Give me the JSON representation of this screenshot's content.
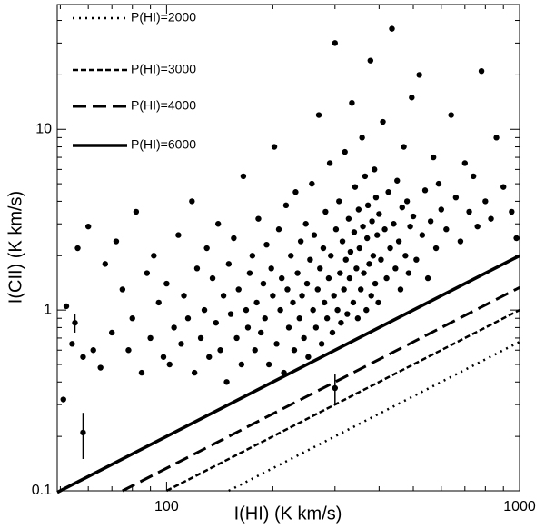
{
  "chart_data": {
    "type": "scatter",
    "log_x": true,
    "log_y": true,
    "xlabel": "I(HI) (K km/s)",
    "ylabel": "I(CII) (K km/s)",
    "xlim": [
      49,
      1000
    ],
    "ylim": [
      0.1,
      49
    ],
    "xticks": [
      100,
      1000
    ],
    "yticks": [
      0.1,
      1,
      10
    ],
    "xminor": [
      50,
      60,
      70,
      80,
      90,
      200,
      300,
      400,
      500,
      600,
      700,
      800,
      900
    ],
    "yminor": [
      0.2,
      0.3,
      0.4,
      0.5,
      0.6,
      0.7,
      0.8,
      0.9,
      2,
      3,
      4,
      5,
      6,
      7,
      8,
      9,
      20,
      30,
      40
    ],
    "color": "#000000",
    "legend": "upper left",
    "lines": [
      {
        "name": "P(HI)=2000",
        "style": "dotted",
        "x": [
          150,
          1000
        ],
        "y": [
          0.1,
          0.667
        ]
      },
      {
        "name": "P(HI)=3000",
        "style": "dashed",
        "x": [
          100,
          1000
        ],
        "y": [
          0.1,
          1.0
        ]
      },
      {
        "name": "P(HI)=4000",
        "style": "longdash",
        "x": [
          75,
          1000
        ],
        "y": [
          0.1,
          1.333
        ]
      },
      {
        "name": "P(HI)=6000",
        "style": "solid",
        "x": [
          49,
          1000
        ],
        "y": [
          0.098,
          2.0
        ]
      }
    ],
    "error_points": {
      "x": [
        55,
        58,
        300
      ],
      "y": [
        0.85,
        0.21,
        0.37
      ],
      "errors": [
        0.1,
        0.06,
        0.07
      ]
    },
    "x": [
      51,
      52,
      54,
      56,
      58,
      60,
      62,
      65,
      67,
      70,
      72,
      75,
      78,
      80,
      82,
      85,
      88,
      90,
      92,
      95,
      98,
      100,
      102,
      105,
      108,
      110,
      112,
      115,
      118,
      120,
      122,
      125,
      128,
      130,
      132,
      135,
      138,
      140,
      142,
      145,
      148,
      150,
      152,
      155,
      158,
      160,
      163,
      165,
      168,
      170,
      172,
      175,
      178,
      180,
      182,
      185,
      188,
      190,
      192,
      195,
      198,
      200,
      202,
      205,
      208,
      210,
      212,
      215,
      218,
      220,
      222,
      225,
      228,
      230,
      232,
      235,
      238,
      240,
      242,
      245,
      248,
      250,
      252,
      255,
      258,
      260,
      262,
      265,
      268,
      270,
      272,
      275,
      278,
      280,
      282,
      285,
      288,
      290,
      292,
      295,
      298,
      300,
      302,
      305,
      308,
      310,
      312,
      315,
      318,
      320,
      322,
      325,
      328,
      330,
      332,
      335,
      338,
      340,
      342,
      345,
      348,
      350,
      352,
      355,
      358,
      360,
      362,
      365,
      368,
      370,
      372,
      375,
      378,
      380,
      382,
      385,
      388,
      390,
      392,
      395,
      398,
      400,
      405,
      410,
      415,
      420,
      425,
      430,
      435,
      440,
      445,
      450,
      455,
      460,
      465,
      470,
      475,
      480,
      485,
      490,
      495,
      500,
      510,
      520,
      530,
      540,
      550,
      560,
      570,
      580,
      590,
      600,
      620,
      640,
      660,
      680,
      700,
      720,
      740,
      760,
      780,
      800,
      830,
      860,
      900,
      950,
      980
    ],
    "values": [
      0.32,
      1.05,
      0.65,
      2.2,
      0.55,
      2.9,
      0.6,
      0.48,
      1.8,
      0.75,
      2.4,
      1.3,
      0.6,
      0.9,
      3.5,
      0.45,
      1.6,
      0.7,
      2.0,
      1.1,
      0.55,
      1.4,
      0.5,
      0.8,
      2.6,
      0.65,
      1.2,
      0.9,
      4.0,
      0.45,
      1.7,
      0.7,
      1.0,
      2.2,
      0.55,
      1.5,
      0.85,
      3.0,
      0.6,
      1.2,
      0.4,
      1.8,
      0.95,
      2.5,
      0.7,
      1.3,
      0.5,
      5.5,
      1.0,
      0.8,
      1.6,
      2.0,
      0.6,
      1.1,
      3.2,
      0.75,
      1.4,
      0.9,
      2.3,
      0.5,
      1.7,
      1.2,
      8.0,
      0.65,
      2.8,
      1.0,
      1.5,
      0.45,
      3.8,
      1.3,
      0.8,
      2.0,
      1.1,
      0.6,
      4.5,
      1.6,
      0.9,
      2.4,
      1.2,
      0.7,
      3.0,
      1.4,
      0.55,
      1.9,
      5.0,
      1.0,
      2.6,
      0.8,
      1.3,
      12.0,
      1.7,
      0.65,
      2.2,
      1.1,
      3.5,
      0.9,
      1.5,
      6.5,
      2.0,
      0.75,
      1.2,
      30.0,
      2.8,
      1.0,
      4.0,
      1.6,
      0.85,
      2.4,
      1.3,
      7.5,
      1.9,
      0.95,
      3.2,
      1.5,
      2.1,
      14.0,
      1.1,
      2.7,
      4.8,
      1.7,
      0.9,
      3.6,
      2.2,
      1.3,
      9.0,
      2.9,
      1.6,
      5.5,
      1.0,
      2.5,
      3.8,
      1.8,
      24.0,
      1.2,
      3.1,
      2.0,
      6.0,
      1.4,
      4.2,
      2.6,
      1.1,
      3.4,
      1.9,
      11.0,
      2.8,
      1.5,
      4.5,
      2.2,
      36.0,
      3.0,
      1.7,
      5.2,
      2.4,
      1.3,
      3.7,
      8.0,
      2.0,
      4.0,
      1.6,
      2.9,
      15.0,
      3.3,
      1.9,
      20.0,
      2.6,
      4.6,
      1.5,
      3.1,
      7.0,
      2.2,
      5.0,
      3.6,
      2.8,
      12.0,
      4.2,
      2.4,
      6.5,
      3.5,
      5.5,
      2.9,
      21.0,
      4.0,
      3.2,
      9.0,
      4.8,
      3.5,
      2.5
    ]
  }
}
